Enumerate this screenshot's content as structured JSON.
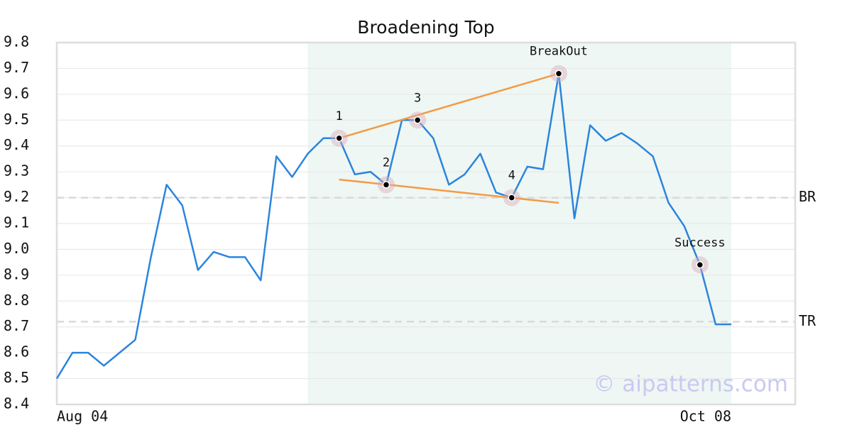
{
  "chart_data": {
    "type": "line",
    "title": "Broadening Top",
    "watermark": "© aipatterns.com",
    "categories": [
      "Aug 04",
      null,
      null,
      null,
      null,
      null,
      null,
      null,
      null,
      null,
      null,
      null,
      null,
      null,
      null,
      null,
      null,
      null,
      null,
      null,
      null,
      null,
      null,
      null,
      null,
      null,
      null,
      null,
      null,
      null,
      null,
      null,
      null,
      null,
      null,
      null,
      null,
      null,
      null,
      null,
      null,
      null,
      null,
      "Oct 08"
    ],
    "values": [
      8.5,
      8.6,
      8.6,
      8.55,
      8.6,
      8.65,
      8.97,
      9.25,
      9.17,
      8.92,
      8.99,
      8.97,
      8.97,
      8.88,
      9.36,
      9.28,
      9.37,
      9.43,
      9.43,
      9.29,
      9.3,
      9.25,
      9.5,
      9.5,
      9.43,
      9.25,
      9.29,
      9.37,
      9.22,
      9.2,
      9.32,
      9.31,
      9.68,
      9.12,
      9.48,
      9.42,
      9.45,
      9.41,
      9.36,
      9.18,
      9.09,
      8.94,
      8.71,
      8.71
    ],
    "color": "#2b84de",
    "ylim": [
      8.4,
      9.8
    ],
    "yticks": [
      8.4,
      8.5,
      8.6,
      8.7,
      8.8,
      8.9,
      {
        "value": 9,
        "label": "9.0"
      },
      9.1,
      9.2,
      9.3,
      9.4,
      9.5,
      9.6,
      9.7,
      9.8
    ],
    "grid": true,
    "highlight_range": [
      16,
      43
    ],
    "highlight_color": "#eef7f3",
    "levels": [
      {
        "label": "BR",
        "value": 9.2
      },
      {
        "label": "TR",
        "value": 8.72
      }
    ],
    "trend_color": "#f59a45",
    "trend_lines": [
      {
        "start": [
          18,
          9.43
        ],
        "end": [
          32,
          9.68
        ]
      },
      {
        "start": [
          18,
          9.27
        ],
        "end": [
          32,
          9.18
        ]
      }
    ],
    "pattern_points": [
      {
        "label": "1",
        "index": 18,
        "value": 9.43
      },
      {
        "label": "2",
        "index": 21,
        "value": 9.25
      },
      {
        "label": "3",
        "index": 23,
        "value": 9.5
      },
      {
        "label": "4",
        "index": 29,
        "value": 9.2
      },
      {
        "label": "BreakOut",
        "index": 32,
        "value": 9.68
      },
      {
        "label": "Success",
        "index": 41,
        "value": 8.94
      }
    ]
  }
}
